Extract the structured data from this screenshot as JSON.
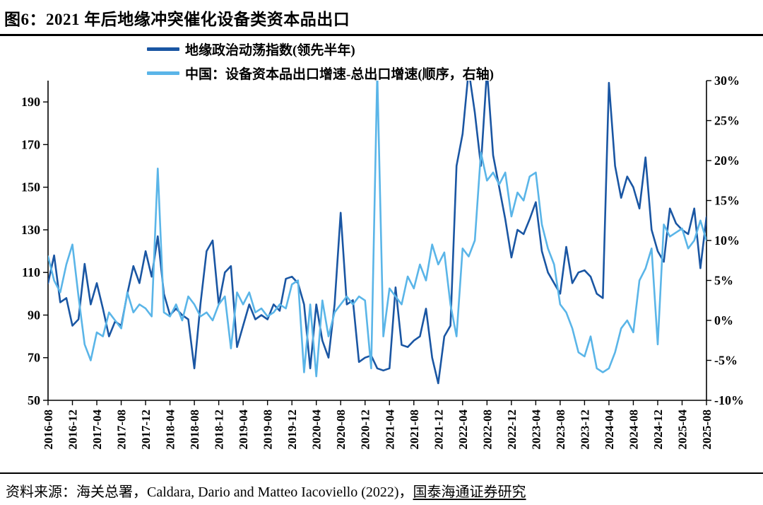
{
  "title": "图6：2021 年后地缘冲突催化设备类资本品出口",
  "legend": [
    {
      "label": "地缘政治动荡指数(领先半年)",
      "color": "#1a56a3"
    },
    {
      "label": "中国：设备资本品出口增速-总出口增速(顺序，右轴)",
      "color": "#5ab5e8"
    }
  ],
  "footer": {
    "prefix": "资料来源：海关总署，Caldara, Dario and Matteo Iacoviello (2022)，",
    "link": "国泰海通证券研究"
  },
  "chart_data": {
    "type": "line",
    "title": "图6：2021 年后地缘冲突催化设备类资本品出口",
    "grid": false,
    "legend_position": "top",
    "x": [
      "2016-08",
      "2016-09",
      "2016-10",
      "2016-11",
      "2016-12",
      "2017-01",
      "2017-02",
      "2017-03",
      "2017-04",
      "2017-05",
      "2017-06",
      "2017-07",
      "2017-08",
      "2017-09",
      "2017-10",
      "2017-11",
      "2017-12",
      "2018-01",
      "2018-02",
      "2018-03",
      "2018-04",
      "2018-05",
      "2018-06",
      "2018-07",
      "2018-08",
      "2018-09",
      "2018-10",
      "2018-11",
      "2018-12",
      "2019-01",
      "2019-02",
      "2019-03",
      "2019-04",
      "2019-05",
      "2019-06",
      "2019-07",
      "2019-08",
      "2019-09",
      "2019-10",
      "2019-11",
      "2019-12",
      "2020-01",
      "2020-02",
      "2020-03",
      "2020-04",
      "2020-05",
      "2020-06",
      "2020-07",
      "2020-08",
      "2020-09",
      "2020-10",
      "2020-11",
      "2020-12",
      "2021-01",
      "2021-02",
      "2021-03",
      "2021-04",
      "2021-05",
      "2021-06",
      "2021-07",
      "2021-08",
      "2021-09",
      "2021-10",
      "2021-11",
      "2021-12",
      "2022-01",
      "2022-02",
      "2022-03",
      "2022-04",
      "2022-05",
      "2022-06",
      "2022-07",
      "2022-08",
      "2022-09",
      "2022-10",
      "2022-11",
      "2022-12",
      "2023-01",
      "2023-02",
      "2023-03",
      "2023-04",
      "2023-05",
      "2023-06",
      "2023-07",
      "2023-08",
      "2023-09",
      "2023-10",
      "2023-11",
      "2023-12",
      "2024-01",
      "2024-02",
      "2024-03",
      "2024-04",
      "2024-05",
      "2024-06",
      "2024-07",
      "2024-08",
      "2024-09",
      "2024-10",
      "2024-11",
      "2024-12",
      "2025-01",
      "2025-02",
      "2025-03",
      "2025-04",
      "2025-05",
      "2025-06",
      "2025-07",
      "2025-08"
    ],
    "x_tick_step": 4,
    "left_axis": {
      "min": 50,
      "max": 200,
      "ticks": [
        50,
        70,
        90,
        110,
        130,
        150,
        170,
        190
      ]
    },
    "right_axis": {
      "min": -10,
      "max": 30,
      "ticks": [
        -10,
        -5,
        0,
        5,
        10,
        15,
        20,
        25,
        30
      ],
      "format": "percent"
    },
    "series": [
      {
        "name": "地缘政治动荡指数(领先半年)",
        "axis": "left",
        "color": "#1a56a3",
        "values": [
          105,
          118,
          96,
          98,
          85,
          88,
          114,
          95,
          105,
          93,
          80,
          87,
          85,
          100,
          113,
          105,
          120,
          108,
          127,
          100,
          90,
          93,
          90,
          88,
          65,
          95,
          120,
          125,
          95,
          110,
          113,
          75,
          85,
          95,
          88,
          90,
          88,
          95,
          92,
          107,
          108,
          105,
          95,
          65,
          95,
          78,
          70,
          95,
          138,
          95,
          97,
          68,
          70,
          71,
          65,
          64,
          65,
          103,
          76,
          75,
          78,
          80,
          93,
          70,
          58,
          80,
          85,
          160,
          175,
          205,
          185,
          160,
          205,
          165,
          150,
          135,
          117,
          130,
          128,
          135,
          143,
          120,
          110,
          105,
          100,
          122,
          105,
          110,
          111,
          108,
          100,
          98,
          199,
          160,
          145,
          155,
          150,
          140,
          164,
          130,
          120,
          115,
          140,
          133,
          130,
          128,
          140,
          112,
          136
        ]
      },
      {
        "name": "中国：设备资本品出口增速-总出口增速(顺序，右轴)",
        "axis": "right",
        "color": "#5ab5e8",
        "values": [
          8,
          5,
          3.5,
          7,
          9.5,
          3,
          -3,
          -5,
          -1.5,
          -2,
          1,
          0,
          -1,
          3.5,
          1,
          2,
          1.5,
          0.5,
          19,
          1,
          0.5,
          2,
          0,
          3,
          2,
          0.5,
          1,
          0,
          2,
          3,
          -3.5,
          3.5,
          2,
          3.5,
          1,
          1.5,
          0.5,
          1,
          2,
          1.5,
          4.5,
          5,
          -6.5,
          2,
          -7,
          2.5,
          -2,
          1,
          2,
          3,
          2,
          3,
          2.5,
          -6,
          31,
          -2,
          4,
          3,
          2,
          5.5,
          4,
          7,
          5,
          9.5,
          7,
          8.5,
          2,
          -2,
          9,
          8,
          10,
          21,
          17.5,
          18.5,
          17,
          18.5,
          13,
          16,
          15,
          18,
          18.5,
          12,
          9,
          7,
          2,
          1,
          -1,
          -4,
          -4.5,
          -2,
          -6,
          -6.5,
          -6,
          -4,
          -1,
          0,
          -1.5,
          5,
          6.5,
          9,
          -3,
          12,
          10.5,
          11,
          11.5,
          9,
          10,
          12.5,
          10
        ]
      }
    ]
  }
}
